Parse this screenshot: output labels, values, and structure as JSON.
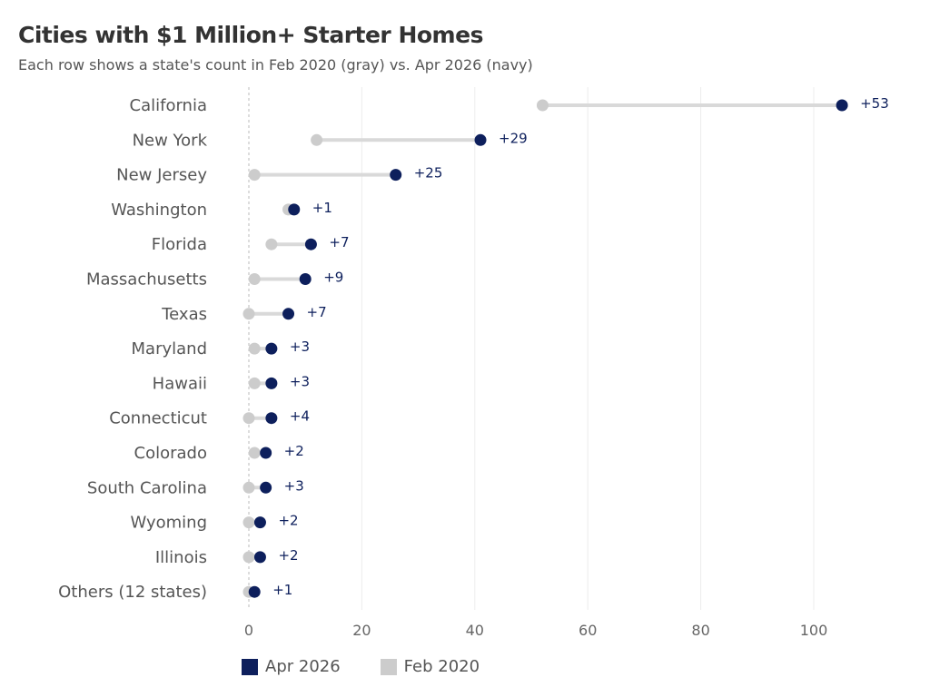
{
  "chart_data": {
    "type": "dumbbell",
    "title": "Cities with $1 Million+ Starter Homes",
    "subtitle": "Each row shows a state's count in Feb 2020 (gray) vs. Apr 2026 (navy)",
    "categories": [
      "California",
      "New York",
      "New Jersey",
      "Washington",
      "Florida",
      "Massachusetts",
      "Texas",
      "Maryland",
      "Hawaii",
      "Connecticut",
      "Colorado",
      "South Carolina",
      "Wyoming",
      "Illinois",
      "Others (12 states)"
    ],
    "series": [
      {
        "name": "Feb 2020",
        "color": "#cccccc",
        "values": [
          52,
          12,
          1,
          7,
          4,
          1,
          0,
          1,
          1,
          0,
          1,
          0,
          0,
          0,
          0
        ]
      },
      {
        "name": "Apr 2026",
        "color": "#0d1f5c",
        "values": [
          105,
          41,
          26,
          8,
          11,
          10,
          7,
          4,
          4,
          4,
          3,
          3,
          2,
          2,
          1
        ]
      }
    ],
    "delta_labels": [
      "+53",
      "+29",
      "+25",
      "+1",
      "+7",
      "+9",
      "+7",
      "+3",
      "+3",
      "+4",
      "+2",
      "+3",
      "+2",
      "+2",
      "+1"
    ],
    "xticks": [
      0,
      20,
      40,
      60,
      80,
      100
    ],
    "xtick_labels": [
      "0",
      "20",
      "40",
      "60",
      "80",
      "100"
    ],
    "xlim": [
      0,
      113
    ],
    "grid": "vertical",
    "legend": "bottom",
    "legend_entries": [
      "Apr 2026",
      "Feb 2020"
    ],
    "colors": {
      "navy": "#0d1f5c",
      "gray": "#cccccc",
      "connector": "#d9d9d9",
      "grid": "#ececec",
      "zero_line": "#bbbbbb"
    }
  }
}
